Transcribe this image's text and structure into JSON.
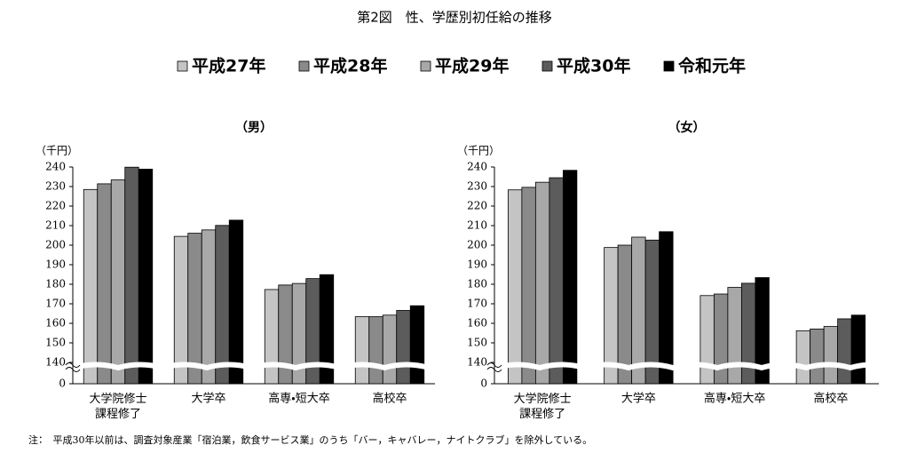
{
  "title": "第2図　性、学歴別初任給の推移",
  "note": "注：　平成30年以前は、調査対象産業「宿泊業，飲食サービス業」のうち「バー，キャバレー，ナイトクラブ」を除外している。",
  "chart_data": [
    {
      "type": "bar",
      "title": "（男）",
      "y_label": "（千円）",
      "categories": [
        "大学院修士\n課程修了",
        "大学卒",
        "高専・短大卒",
        "高校卒"
      ],
      "series": [
        {
          "name": "平成27年",
          "color": "#c4c4c4",
          "values": [
            228.5,
            204.5,
            177.3,
            163.4
          ]
        },
        {
          "name": "平成28年",
          "color": "#8a8a8a",
          "values": [
            231.4,
            206.1,
            179.6,
            163.4
          ]
        },
        {
          "name": "平成29年",
          "color": "#a8a8a8",
          "values": [
            233.4,
            207.8,
            180.4,
            164.2
          ]
        },
        {
          "name": "平成30年",
          "color": "#5c5c5c",
          "values": [
            239.9,
            210.1,
            182.9,
            166.6
          ]
        },
        {
          "name": "令和元年",
          "color": "#000000",
          "values": [
            238.9,
            212.8,
            184.9,
            169.0
          ]
        }
      ],
      "ylim": [
        0,
        240
      ],
      "ybreak": [
        0,
        140
      ],
      "yticks": [
        0,
        140,
        150,
        160,
        170,
        180,
        190,
        200,
        210,
        220,
        230,
        240
      ]
    },
    {
      "type": "bar",
      "title": "（女）",
      "y_label": "（千円）",
      "categories": [
        "大学院修士\n課程修了",
        "大学卒",
        "高専・短大卒",
        "高校卒"
      ],
      "series": [
        {
          "name": "平成27年",
          "color": "#c4c4c4",
          "values": [
            228.3,
            198.8,
            174.2,
            156.2
          ]
        },
        {
          "name": "平成28年",
          "color": "#8a8a8a",
          "values": [
            229.6,
            200.0,
            175.0,
            157.1
          ]
        },
        {
          "name": "平成29年",
          "color": "#a8a8a8",
          "values": [
            232.2,
            204.1,
            178.4,
            158.4
          ]
        },
        {
          "name": "平成30年",
          "color": "#5c5c5c",
          "values": [
            234.5,
            202.6,
            180.5,
            162.3
          ]
        },
        {
          "name": "令和元年",
          "color": "#000000",
          "values": [
            238.3,
            206.9,
            183.4,
            164.2
          ]
        }
      ],
      "ylim": [
        0,
        240
      ],
      "ybreak": [
        0,
        140
      ],
      "yticks": [
        0,
        140,
        150,
        160,
        170,
        180,
        190,
        200,
        210,
        220,
        230,
        240
      ]
    }
  ]
}
